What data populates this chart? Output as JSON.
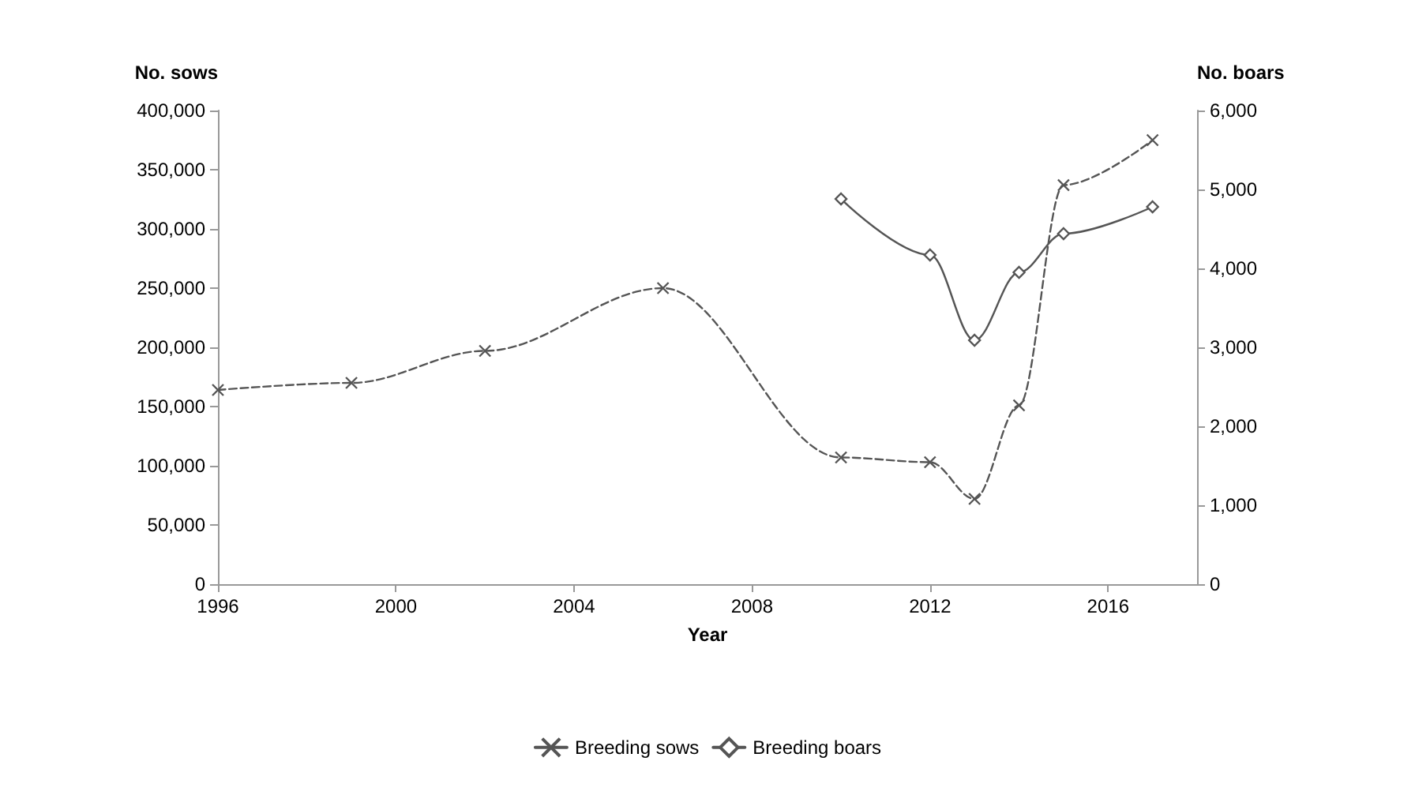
{
  "chart_data": {
    "type": "line",
    "xlabel": "Year",
    "ylabel": "No. sows",
    "y2label": "No. boars",
    "xlim": [
      1996,
      2018
    ],
    "xticks": [
      1996,
      2000,
      2004,
      2008,
      2012,
      2016
    ],
    "ylim": [
      0,
      400000
    ],
    "yticks": [
      {
        "value": 0,
        "label": "0"
      },
      {
        "value": 50000,
        "label": "50,000"
      },
      {
        "value": 100000,
        "label": "100,000"
      },
      {
        "value": 150000,
        "label": "150,000"
      },
      {
        "value": 200000,
        "label": "200,000"
      },
      {
        "value": 250000,
        "label": "250,000"
      },
      {
        "value": 300000,
        "label": "300,000"
      },
      {
        "value": 350000,
        "label": "350,000"
      },
      {
        "value": 400000,
        "label": "400,000"
      }
    ],
    "y2lim": [
      0,
      6000
    ],
    "y2ticks": [
      {
        "value": 0,
        "label": "0"
      },
      {
        "value": 1000,
        "label": "1,000"
      },
      {
        "value": 2000,
        "label": "2,000"
      },
      {
        "value": 3000,
        "label": "3,000"
      },
      {
        "value": 4000,
        "label": "4,000"
      },
      {
        "value": 5000,
        "label": "5,000"
      },
      {
        "value": 6000,
        "label": "6,000"
      }
    ],
    "grid": false,
    "legend": "bottom",
    "series": [
      {
        "name": "Breeding sows",
        "color": "#555555",
        "marker": "cross",
        "line_style": "dashed",
        "x": [
          1996,
          1999,
          2002,
          2006,
          2010,
          2012,
          2013,
          2014,
          2015,
          2017
        ],
        "values": [
          164000,
          170000,
          197000,
          250000,
          107000,
          103000,
          72000,
          151000,
          337000,
          375000
        ]
      },
      {
        "name": "Breeding boars",
        "color": "#555555",
        "marker": "diamond",
        "line_style": "solid",
        "axis": "y2",
        "x": [
          2010,
          2012,
          2013,
          2014,
          2015,
          2017
        ],
        "values": [
          4880,
          4170,
          3090,
          3950,
          4440,
          4780
        ]
      }
    ]
  }
}
